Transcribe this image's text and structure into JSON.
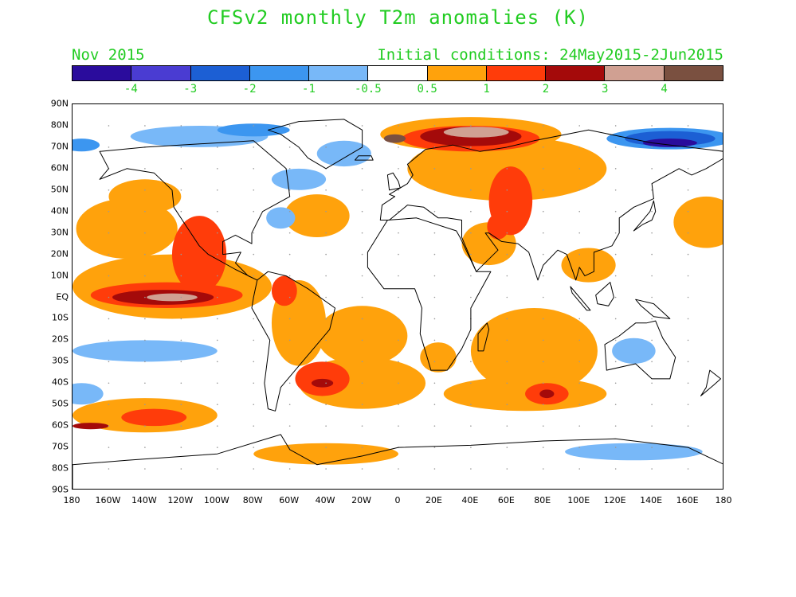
{
  "title": "CFSv2 monthly T2m anomalies (K)",
  "valid_month": "Nov 2015",
  "initial_conditions": "Initial conditions: 24May2015-2Jun2015",
  "text_color": "#22cc22",
  "legend": {
    "colors": [
      "#2a0c9c",
      "#4a3cd2",
      "#1c5fd4",
      "#3c96f0",
      "#78b8f8",
      "#ffffff",
      "#ffa20c",
      "#ff3c0a",
      "#a40a0a",
      "#d0a092",
      "#7a5040"
    ],
    "labels": [
      "-4",
      "-3",
      "-2",
      "-1",
      "-0.5",
      "0.5",
      "1",
      "2",
      "3",
      "4"
    ]
  },
  "lat_labels": [
    "90N",
    "80N",
    "70N",
    "60N",
    "50N",
    "40N",
    "30N",
    "20N",
    "10N",
    "EQ",
    "10S",
    "20S",
    "30S",
    "40S",
    "50S",
    "60S",
    "70S",
    "80S",
    "90S"
  ],
  "lon_labels": [
    "180",
    "160W",
    "140W",
    "120W",
    "100W",
    "80W",
    "60W",
    "40W",
    "20W",
    "0",
    "20E",
    "40E",
    "60E",
    "80E",
    "100E",
    "120E",
    "140E",
    "160E",
    "180"
  ],
  "features": [
    {
      "name": "warm-anomaly-n-pacific",
      "cls": "c1",
      "lon": -150,
      "lat": 32,
      "rx": 28,
      "ry": 14
    },
    {
      "name": "warm-anomaly-ne-pacific",
      "cls": "c1",
      "lon": -140,
      "lat": 47,
      "rx": 20,
      "ry": 8
    },
    {
      "name": "warm-anomaly-w-pacific-north",
      "cls": "c1",
      "lon": 170,
      "lat": 35,
      "rx": 18,
      "ry": 12
    },
    {
      "name": "warm-anomaly-n-atlantic",
      "cls": "c1",
      "lon": -45,
      "lat": 38,
      "rx": 18,
      "ry": 10
    },
    {
      "name": "warm-anomaly-eurasia",
      "cls": "c1",
      "lon": 60,
      "lat": 60,
      "rx": 55,
      "ry": 15
    },
    {
      "name": "warm-anomaly-arctic-siberia",
      "cls": "c1",
      "lon": 40,
      "lat": 76,
      "rx": 50,
      "ry": 8
    },
    {
      "name": "warm-anomaly-tropical-pacific",
      "cls": "c1",
      "lon": -125,
      "lat": 5,
      "rx": 55,
      "ry": 15
    },
    {
      "name": "warm-anomaly-tropical-atlantic",
      "cls": "c1",
      "lon": -20,
      "lat": -18,
      "rx": 25,
      "ry": 14
    },
    {
      "name": "warm-anomaly-s-atlantic",
      "cls": "c1",
      "lon": -20,
      "lat": -40,
      "rx": 35,
      "ry": 12
    },
    {
      "name": "warm-anomaly-indian-ocean",
      "cls": "c1",
      "lon": 75,
      "lat": -25,
      "rx": 35,
      "ry": 20
    },
    {
      "name": "warm-anomaly-s-indian",
      "cls": "c1",
      "lon": 70,
      "lat": -45,
      "rx": 45,
      "ry": 8
    },
    {
      "name": "warm-anomaly-s-pacific",
      "cls": "c1",
      "lon": -140,
      "lat": -55,
      "rx": 40,
      "ry": 8
    },
    {
      "name": "warm-anomaly-southern-ocean",
      "cls": "c1",
      "lon": -40,
      "lat": -73,
      "rx": 40,
      "ry": 5
    },
    {
      "name": "warm-anomaly-arabia",
      "cls": "c1",
      "lon": 50,
      "lat": 25,
      "rx": 15,
      "ry": 10
    },
    {
      "name": "warm-anomaly-se-asia",
      "cls": "c1",
      "lon": 105,
      "lat": 15,
      "rx": 15,
      "ry": 8
    },
    {
      "name": "warm-anomaly-s-america",
      "cls": "c1",
      "lon": -55,
      "lat": -12,
      "rx": 15,
      "ry": 20
    },
    {
      "name": "warm-anomaly-s-africa",
      "cls": "c1",
      "lon": 22,
      "lat": -28,
      "rx": 10,
      "ry": 7
    },
    {
      "name": "strong-warm-mexico-coast",
      "cls": "c2",
      "lon": -110,
      "lat": 20,
      "rx": 15,
      "ry": 18
    },
    {
      "name": "strong-warm-siberia",
      "cls": "c2",
      "lon": 40,
      "lat": 74,
      "rx": 38,
      "ry": 6
    },
    {
      "name": "strong-warm-central-asia",
      "cls": "c2",
      "lon": 62,
      "lat": 45,
      "rx": 12,
      "ry": 16
    },
    {
      "name": "strong-warm-amazon",
      "cls": "c2",
      "lon": -63,
      "lat": 3,
      "rx": 7,
      "ry": 7
    },
    {
      "name": "strong-warm-argentina",
      "cls": "c2",
      "lon": -42,
      "lat": -38,
      "rx": 15,
      "ry": 8
    },
    {
      "name": "strong-warm-s-indian",
      "cls": "c2",
      "lon": 82,
      "lat": -45,
      "rx": 12,
      "ry": 5
    },
    {
      "name": "strong-warm-s-pacific",
      "cls": "c2",
      "lon": -135,
      "lat": -56,
      "rx": 18,
      "ry": 4
    },
    {
      "name": "strong-warm-tropical-pacific",
      "cls": "c2",
      "lon": -128,
      "lat": 1,
      "rx": 42,
      "ry": 6
    },
    {
      "name": "strong-warm-caspian",
      "cls": "c2",
      "lon": 55,
      "lat": 33,
      "rx": 6,
      "ry": 6
    },
    {
      "name": "very-warm-tropical-pacific",
      "cls": "c3",
      "lon": -130,
      "lat": 0,
      "rx": 28,
      "ry": 3.5
    },
    {
      "name": "very-warm-siberia",
      "cls": "c3",
      "lon": 40,
      "lat": 75,
      "rx": 28,
      "ry": 4.5
    },
    {
      "name": "very-warm-argentina",
      "cls": "c3",
      "lon": -42,
      "lat": -40,
      "rx": 6,
      "ry": 2
    },
    {
      "name": "very-warm-s-indian",
      "cls": "c3",
      "lon": 82,
      "lat": -45,
      "rx": 4,
      "ry": 2
    },
    {
      "name": "very-warm-s-pacific",
      "cls": "c3",
      "lon": -170,
      "lat": -60,
      "rx": 10,
      "ry": 1.5
    },
    {
      "name": "extreme-warm-tropical-pacific",
      "cls": "c4",
      "lon": -125,
      "lat": 0,
      "rx": 14,
      "ry": 1.8
    },
    {
      "name": "extreme-warm-siberia",
      "cls": "c4",
      "lon": 43,
      "lat": 77,
      "rx": 18,
      "ry": 2.5
    },
    {
      "name": "max-warm-siberia",
      "cls": "c5",
      "lon": -2,
      "lat": 74,
      "rx": 6,
      "ry": 2
    },
    {
      "name": "cool-anomaly-canada-arctic",
      "cls": "b1",
      "lon": -110,
      "lat": 75,
      "rx": 38,
      "ry": 5
    },
    {
      "name": "cool-anomaly-n-atlantic",
      "cls": "b1",
      "lon": -30,
      "lat": 67,
      "rx": 15,
      "ry": 6
    },
    {
      "name": "cool-anomaly-canada",
      "cls": "b1",
      "lon": -55,
      "lat": 55,
      "rx": 15,
      "ry": 5
    },
    {
      "name": "cool-anomaly-sw-pacific",
      "cls": "b1",
      "lon": -140,
      "lat": -25,
      "rx": 40,
      "ry": 5
    },
    {
      "name": "cool-anomaly-antarctica",
      "cls": "b1",
      "lon": 130,
      "lat": -72,
      "rx": 38,
      "ry": 4
    },
    {
      "name": "cool-anomaly-australia",
      "cls": "b1",
      "lon": 130,
      "lat": -25,
      "rx": 12,
      "ry": 6
    },
    {
      "name": "cool-anomaly-s-pacific-east",
      "cls": "b1",
      "lon": -175,
      "lat": -45,
      "rx": 12,
      "ry": 5
    },
    {
      "name": "cool-anomaly-nw-atlantic",
      "cls": "b1",
      "lon": -65,
      "lat": 37,
      "rx": 8,
      "ry": 5
    },
    {
      "name": "cool-anomaly-e-siberia",
      "cls": "b2",
      "lon": 150,
      "lat": 74,
      "rx": 35,
      "ry": 5
    },
    {
      "name": "cool-anomaly-alaska",
      "cls": "b2",
      "lon": -175,
      "lat": 71,
      "rx": 10,
      "ry": 3
    },
    {
      "name": "cool-anomaly-canada-arctic-core",
      "cls": "b2",
      "lon": -80,
      "lat": 78,
      "rx": 20,
      "ry": 3
    },
    {
      "name": "strong-cool-e-siberia",
      "cls": "b3",
      "lon": 150,
      "lat": 74,
      "rx": 25,
      "ry": 3.5
    },
    {
      "name": "very-strong-cool-e-siberia",
      "cls": "b4",
      "lon": 150,
      "lat": 72,
      "rx": 15,
      "ry": 2
    }
  ],
  "land": [
    {
      "name": "north-america",
      "points": [
        [
          -165,
          68
        ],
        [
          -140,
          70
        ],
        [
          -100,
          72
        ],
        [
          -80,
          73
        ],
        [
          -62,
          60
        ],
        [
          -60,
          47
        ],
        [
          -75,
          40
        ],
        [
          -81,
          30
        ],
        [
          -81,
          25
        ],
        [
          -90,
          29
        ],
        [
          -97,
          26
        ],
        [
          -97,
          20
        ],
        [
          -87,
          21
        ],
        [
          -90,
          16
        ],
        [
          -83,
          10
        ],
        [
          -78,
          8
        ],
        [
          -90,
          13
        ],
        [
          -105,
          20
        ],
        [
          -110,
          24
        ],
        [
          -117,
          33
        ],
        [
          -124,
          42
        ],
        [
          -125,
          50
        ],
        [
          -135,
          58
        ],
        [
          -150,
          60
        ],
        [
          -165,
          55
        ],
        [
          -160,
          60
        ]
      ]
    },
    {
      "name": "greenland",
      "points": [
        [
          -72,
          78
        ],
        [
          -55,
          82
        ],
        [
          -30,
          83
        ],
        [
          -20,
          78
        ],
        [
          -20,
          70
        ],
        [
          -40,
          60
        ],
        [
          -50,
          65
        ],
        [
          -55,
          70
        ],
        [
          -65,
          76
        ]
      ]
    },
    {
      "name": "south-america",
      "points": [
        [
          -78,
          8
        ],
        [
          -72,
          12
        ],
        [
          -62,
          10
        ],
        [
          -50,
          4
        ],
        [
          -35,
          -5
        ],
        [
          -38,
          -15
        ],
        [
          -48,
          -25
        ],
        [
          -58,
          -35
        ],
        [
          -65,
          -42
        ],
        [
          -68,
          -53
        ],
        [
          -72,
          -52
        ],
        [
          -74,
          -40
        ],
        [
          -71,
          -20
        ],
        [
          -81,
          -5
        ],
        [
          -80,
          0
        ]
      ]
    },
    {
      "name": "eurasia",
      "points": [
        [
          -10,
          36
        ],
        [
          -9,
          43
        ],
        [
          -2,
          47
        ],
        [
          -5,
          48
        ],
        [
          5,
          53
        ],
        [
          8,
          57
        ],
        [
          5,
          62
        ],
        [
          15,
          69
        ],
        [
          30,
          71
        ],
        [
          45,
          68
        ],
        [
          60,
          70
        ],
        [
          75,
          73
        ],
        [
          105,
          78
        ],
        [
          140,
          72
        ],
        [
          160,
          70
        ],
        [
          180,
          68
        ],
        [
          180,
          65
        ],
        [
          170,
          60
        ],
        [
          162,
          57
        ],
        [
          155,
          60
        ],
        [
          140,
          53
        ],
        [
          141,
          46
        ],
        [
          130,
          42
        ],
        [
          122,
          37
        ],
        [
          122,
          30
        ],
        [
          118,
          24
        ],
        [
          108,
          21
        ],
        [
          108,
          12
        ],
        [
          103,
          10
        ],
        [
          100,
          14
        ],
        [
          98,
          8
        ],
        [
          93,
          20
        ],
        [
          88,
          22
        ],
        [
          80,
          15
        ],
        [
          77,
          8
        ],
        [
          72,
          21
        ],
        [
          66,
          25
        ],
        [
          57,
          26
        ],
        [
          50,
          30
        ],
        [
          48,
          30
        ],
        [
          55,
          22
        ],
        [
          43,
          12
        ],
        [
          35,
          28
        ],
        [
          35,
          36
        ],
        [
          27,
          37
        ],
        [
          22,
          37
        ],
        [
          14,
          42
        ],
        [
          5,
          43
        ],
        [
          -5,
          36
        ]
      ]
    },
    {
      "name": "africa",
      "points": [
        [
          -17,
          21
        ],
        [
          -6,
          36
        ],
        [
          10,
          37
        ],
        [
          32,
          31
        ],
        [
          34,
          28
        ],
        [
          43,
          12
        ],
        [
          51,
          12
        ],
        [
          40,
          -5
        ],
        [
          40,
          -15
        ],
        [
          35,
          -24
        ],
        [
          27,
          -34
        ],
        [
          18,
          -34
        ],
        [
          12,
          -17
        ],
        [
          13,
          -5
        ],
        [
          9,
          4
        ],
        [
          -8,
          4
        ],
        [
          -17,
          14
        ]
      ]
    },
    {
      "name": "australia",
      "points": [
        [
          114,
          -22
        ],
        [
          122,
          -18
        ],
        [
          131,
          -12
        ],
        [
          137,
          -12
        ],
        [
          142,
          -11
        ],
        [
          146,
          -19
        ],
        [
          153,
          -28
        ],
        [
          150,
          -38
        ],
        [
          140,
          -38
        ],
        [
          131,
          -31
        ],
        [
          115,
          -34
        ]
      ]
    },
    {
      "name": "antarctica",
      "points": [
        [
          -180,
          -78
        ],
        [
          -150,
          -76
        ],
        [
          -100,
          -73
        ],
        [
          -65,
          -64
        ],
        [
          -60,
          -71
        ],
        [
          -45,
          -78
        ],
        [
          -20,
          -74
        ],
        [
          0,
          -70
        ],
        [
          40,
          -69
        ],
        [
          80,
          -67
        ],
        [
          120,
          -66
        ],
        [
          160,
          -70
        ],
        [
          180,
          -78
        ],
        [
          180,
          -90
        ],
        [
          -180,
          -90
        ]
      ]
    },
    {
      "name": "uk",
      "points": [
        [
          -5,
          50
        ],
        [
          1,
          51
        ],
        [
          0,
          54
        ],
        [
          -3,
          58
        ],
        [
          -6,
          57
        ]
      ]
    },
    {
      "name": "japan",
      "points": [
        [
          130,
          31
        ],
        [
          135,
          34
        ],
        [
          140,
          36
        ],
        [
          142,
          40
        ],
        [
          141,
          45
        ],
        [
          139,
          40
        ],
        [
          133,
          34
        ]
      ]
    },
    {
      "name": "madagascar",
      "points": [
        [
          44,
          -25
        ],
        [
          47,
          -25
        ],
        [
          50,
          -15
        ],
        [
          49,
          -12
        ],
        [
          44,
          -17
        ]
      ]
    },
    {
      "name": "new-zealand",
      "points": [
        [
          172,
          -34
        ],
        [
          178,
          -38
        ],
        [
          174,
          -41
        ],
        [
          167,
          -46
        ],
        [
          170,
          -42
        ]
      ]
    },
    {
      "name": "indonesia-borneo",
      "points": [
        [
          109,
          1
        ],
        [
          117,
          7
        ],
        [
          119,
          0
        ],
        [
          116,
          -4
        ],
        [
          110,
          -3
        ]
      ]
    },
    {
      "name": "sumatra",
      "points": [
        [
          95,
          5
        ],
        [
          106,
          -6
        ],
        [
          104,
          -6
        ],
        [
          96,
          2
        ]
      ]
    },
    {
      "name": "new-guinea",
      "points": [
        [
          131,
          -1
        ],
        [
          141,
          -3
        ],
        [
          150,
          -10
        ],
        [
          141,
          -9
        ],
        [
          134,
          -4
        ]
      ]
    },
    {
      "name": "iceland",
      "points": [
        [
          -24,
          64
        ],
        [
          -14,
          64
        ],
        [
          -15,
          66
        ],
        [
          -22,
          66
        ]
      ]
    }
  ]
}
